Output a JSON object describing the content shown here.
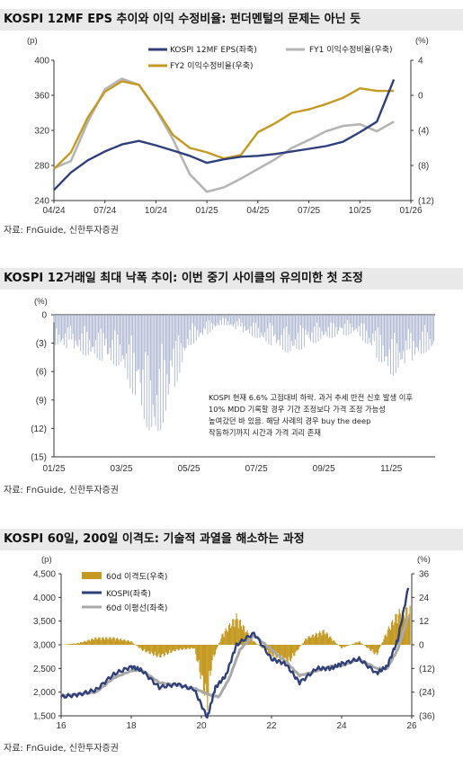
{
  "panels": [
    {
      "title": "KOSPI 12MF EPS 추이와 이익 수정비율: 펀더멘털의 문제는 아닌 듯",
      "source": "자료: FnGuide, 신한투자증권"
    },
    {
      "title": "KOSPI 12거래일 최대 낙폭 추이: 이번 중기 사이클의 유의미한 첫 조정",
      "source": "자료: FnGuide, 신한투자증권"
    },
    {
      "title": "KOSPI 60일, 200일 이격도: 기술적 과열을 해소하는 과정",
      "source": "자료: FnGuide, 신한투자증권"
    }
  ],
  "chart_data": [
    {
      "type": "line",
      "left_unit": "(p)",
      "right_unit": "(%)",
      "x_tick_labels": [
        "04/24",
        "07/24",
        "10/24",
        "01/25",
        "04/25",
        "07/25",
        "10/25",
        "01/26"
      ],
      "y_left_ticks": [
        "400",
        "360",
        "320",
        "280",
        "240"
      ],
      "y_right_ticks": [
        "4",
        "0",
        "(4)",
        "(8)",
        "(12)"
      ],
      "ylim_left": [
        240,
        400
      ],
      "ylim_right": [
        -12,
        4
      ],
      "x_months": [
        "2024-04",
        "2024-07",
        "2024-10",
        "2025-01",
        "2025-04",
        "2025-07",
        "2025-10",
        "2026-01"
      ],
      "series": [
        {
          "name": "KOSPI 12MF EPS(좌축)",
          "axis": "left",
          "color": "#2f3f7a",
          "x": [
            "2024-04",
            "2024-05",
            "2024-06",
            "2024-07",
            "2024-08",
            "2024-09",
            "2024-10",
            "2024-11",
            "2024-12",
            "2025-01",
            "2025-02",
            "2025-03",
            "2025-04",
            "2025-05",
            "2025-06",
            "2025-07",
            "2025-08",
            "2025-09",
            "2025-10",
            "2025-11",
            "2025-12"
          ],
          "values": [
            252,
            272,
            286,
            296,
            304,
            308,
            303,
            297,
            291,
            283,
            287,
            290,
            291,
            293,
            296,
            299,
            302,
            307,
            318,
            330,
            378
          ]
        },
        {
          "name": "FY1 이익수정비율(우축)",
          "axis": "right",
          "color": "#b5b5b5",
          "x": [
            "2024-04",
            "2024-05",
            "2024-06",
            "2024-07",
            "2024-08",
            "2024-09",
            "2024-10",
            "2024-11",
            "2024-12",
            "2025-01",
            "2025-02",
            "2025-03",
            "2025-04",
            "2025-05",
            "2025-06",
            "2025-07",
            "2025-08",
            "2025-09",
            "2025-10",
            "2025-11",
            "2025-12"
          ],
          "values": [
            -8.3,
            -7.5,
            -3.0,
            0.7,
            1.9,
            1.2,
            -1.6,
            -5.0,
            -9.0,
            -11.0,
            -10.5,
            -9.5,
            -8.4,
            -7.3,
            -6.0,
            -5.1,
            -4.1,
            -3.5,
            -3.3,
            -4.1,
            -3.0
          ]
        },
        {
          "name": "FY2 이익수정비율(우축)",
          "axis": "right",
          "color": "#c59a22",
          "x": [
            "2024-04",
            "2024-05",
            "2024-06",
            "2024-07",
            "2024-08",
            "2024-09",
            "2024-10",
            "2024-11",
            "2024-12",
            "2025-01",
            "2025-02",
            "2025-03",
            "2025-04",
            "2025-05",
            "2025-06",
            "2025-07",
            "2025-08",
            "2025-09",
            "2025-10",
            "2025-11",
            "2025-12"
          ],
          "values": [
            -8.4,
            -6.5,
            -2.5,
            0.4,
            1.6,
            1.2,
            -1.5,
            -4.5,
            -6.0,
            -6.5,
            -7.2,
            -6.8,
            -4.2,
            -3.2,
            -2.0,
            -1.6,
            -1.0,
            -0.3,
            0.8,
            0.5,
            0.5
          ]
        }
      ]
    },
    {
      "type": "bar",
      "y_unit": "(%)",
      "x_tick_labels": [
        "01/25",
        "03/25",
        "05/25",
        "07/25",
        "09/25",
        "11/25"
      ],
      "y_ticks": [
        "0",
        "(3)",
        "(6)",
        "(9)",
        "(12)",
        "(15)"
      ],
      "ylim": [
        -15,
        0
      ],
      "color": "#a8b3cf",
      "annotation": "KOSPI 현재 6.6% 고점대비 하락. 과거 추세 반전 신호 발생 이후\n10% MDD 기록할 경우 기간 조정보다 가격 조정 가능성\n높여갔던 바 있음. 해당 사례의 경우 buy the deep\n작동하기까지 시간과 가격 괴리 존재",
      "series": [
        {
          "name": "",
          "x": [
            "2025-01",
            "2025-02",
            "2025-03",
            "2025-04",
            "2025-05",
            "2025-06",
            "2025-07",
            "2025-08",
            "2025-09",
            "2025-10",
            "2025-11",
            "2025-12"
          ],
          "values": [
            -3.2,
            -4.4,
            -5.6,
            -14.0,
            -3.4,
            -1.0,
            -2.5,
            -4.2,
            -2.6,
            -2.0,
            -6.6,
            -4.0
          ]
        }
      ]
    },
    {
      "type": "line",
      "left_unit": "(p)",
      "right_unit": "(%)",
      "x_tick_labels": [
        "16",
        "18",
        "20",
        "22",
        "24",
        "26"
      ],
      "y_left_ticks": [
        "4,500",
        "4,000",
        "3,500",
        "3,000",
        "2,500",
        "2,000",
        "1,500"
      ],
      "y_right_ticks": [
        "36",
        "24",
        "12",
        "0",
        "(12)",
        "(24)",
        "(36)"
      ],
      "ylim_left": [
        1500,
        4500
      ],
      "ylim_right": [
        -36,
        36
      ],
      "series": [
        {
          "name": "60d 이격도(우축)",
          "axis": "right",
          "kind": "area",
          "color": "#c59a22",
          "x": [
            2016.0,
            2016.5,
            2017.0,
            2017.5,
            2018.0,
            2018.3,
            2018.8,
            2019.3,
            2019.8,
            2020.17,
            2020.3,
            2020.6,
            2021.0,
            2021.5,
            2022.0,
            2022.5,
            2023.0,
            2023.5,
            2024.0,
            2024.5,
            2025.0,
            2025.3,
            2025.6,
            2025.9
          ],
          "values": [
            0,
            1,
            4,
            4,
            2,
            -3,
            -7,
            -3,
            -2,
            -34,
            -10,
            6,
            16,
            2,
            -6,
            -10,
            4,
            8,
            -2,
            2,
            -6,
            8,
            18,
            20
          ]
        },
        {
          "name": "KOSPI(좌축)",
          "axis": "left",
          "color": "#2f3f7a",
          "x": [
            2016.0,
            2016.5,
            2017.0,
            2017.5,
            2018.0,
            2018.3,
            2018.8,
            2019.3,
            2019.8,
            2020.17,
            2020.4,
            2020.7,
            2021.0,
            2021.5,
            2022.0,
            2022.4,
            2022.8,
            2023.3,
            2023.7,
            2024.0,
            2024.5,
            2025.0,
            2025.3,
            2025.6,
            2025.9
          ],
          "values": [
            1900,
            1950,
            2050,
            2380,
            2540,
            2460,
            2100,
            2170,
            2050,
            1460,
            2100,
            2350,
            3000,
            3250,
            2700,
            2600,
            2200,
            2500,
            2500,
            2600,
            2700,
            2400,
            2550,
            3100,
            4200
          ]
        },
        {
          "name": "60d 이평선(좌축)",
          "axis": "left",
          "color": "#a9a9a9",
          "x": [
            2016.0,
            2016.5,
            2017.0,
            2017.5,
            2018.0,
            2018.3,
            2018.8,
            2019.3,
            2019.8,
            2020.2,
            2020.5,
            2020.8,
            2021.1,
            2021.5,
            2022.0,
            2022.4,
            2022.8,
            2023.3,
            2023.7,
            2024.0,
            2024.5,
            2025.0,
            2025.3,
            2025.6,
            2025.9
          ],
          "values": [
            1930,
            1950,
            2000,
            2300,
            2450,
            2470,
            2200,
            2150,
            2080,
            1950,
            1900,
            2300,
            2900,
            3200,
            2900,
            2650,
            2350,
            2450,
            2550,
            2550,
            2700,
            2500,
            2500,
            2900,
            3600
          ]
        }
      ]
    }
  ]
}
